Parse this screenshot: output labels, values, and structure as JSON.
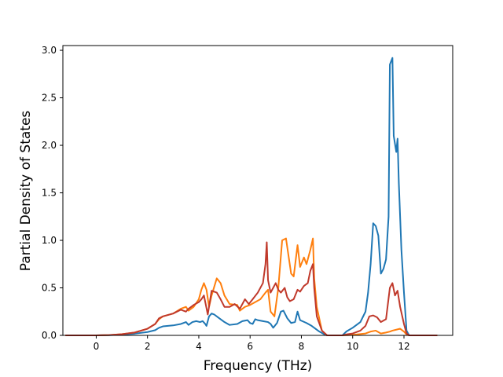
{
  "chart_data": {
    "type": "line",
    "title": "",
    "xlabel": "Frequency (THz)",
    "ylabel": "Partial Density of States",
    "xlim": [
      -1.3,
      13.9
    ],
    "ylim": [
      0.0,
      3.05
    ],
    "x_ticks": [
      0,
      2,
      4,
      6,
      8,
      10,
      12
    ],
    "y_ticks": [
      0.0,
      0.5,
      1.0,
      1.5,
      2.0,
      2.5,
      3.0
    ],
    "x_tick_labels": [
      "0",
      "2",
      "4",
      "6",
      "8",
      "10",
      "12"
    ],
    "y_tick_labels": [
      "0.0",
      "0.5",
      "1.0",
      "1.5",
      "2.0",
      "2.5",
      "3.0"
    ],
    "grid": false,
    "legend": "none",
    "series": [
      {
        "color": "#1f77b4",
        "points": [
          [
            -1.2,
            0
          ],
          [
            0,
            0
          ],
          [
            0.5,
            0.002
          ],
          [
            1,
            0.008
          ],
          [
            1.5,
            0.018
          ],
          [
            2,
            0.035
          ],
          [
            2.3,
            0.055
          ],
          [
            2.45,
            0.08
          ],
          [
            2.6,
            0.095
          ],
          [
            3,
            0.105
          ],
          [
            3.3,
            0.12
          ],
          [
            3.5,
            0.14
          ],
          [
            3.6,
            0.11
          ],
          [
            3.75,
            0.14
          ],
          [
            3.9,
            0.15
          ],
          [
            4.05,
            0.14
          ],
          [
            4.15,
            0.15
          ],
          [
            4.25,
            0.12
          ],
          [
            4.3,
            0.1
          ],
          [
            4.4,
            0.2
          ],
          [
            4.5,
            0.23
          ],
          [
            4.6,
            0.22
          ],
          [
            4.75,
            0.19
          ],
          [
            5,
            0.14
          ],
          [
            5.2,
            0.11
          ],
          [
            5.5,
            0.12
          ],
          [
            5.7,
            0.15
          ],
          [
            5.9,
            0.16
          ],
          [
            6,
            0.13
          ],
          [
            6.1,
            0.12
          ],
          [
            6.2,
            0.17
          ],
          [
            6.3,
            0.16
          ],
          [
            6.5,
            0.15
          ],
          [
            6.7,
            0.14
          ],
          [
            6.8,
            0.12
          ],
          [
            6.9,
            0.08
          ],
          [
            7.05,
            0.13
          ],
          [
            7.2,
            0.25
          ],
          [
            7.3,
            0.26
          ],
          [
            7.45,
            0.18
          ],
          [
            7.6,
            0.13
          ],
          [
            7.75,
            0.14
          ],
          [
            7.85,
            0.25
          ],
          [
            7.95,
            0.16
          ],
          [
            8.2,
            0.13
          ],
          [
            8.4,
            0.1
          ],
          [
            8.55,
            0.07
          ],
          [
            8.7,
            0.04
          ],
          [
            8.9,
            0.01
          ],
          [
            9,
            0
          ],
          [
            9.6,
            0
          ],
          [
            9.75,
            0.04
          ],
          [
            10,
            0.08
          ],
          [
            10.3,
            0.14
          ],
          [
            10.5,
            0.25
          ],
          [
            10.6,
            0.45
          ],
          [
            10.7,
            0.75
          ],
          [
            10.8,
            1.18
          ],
          [
            10.9,
            1.15
          ],
          [
            11.0,
            1.05
          ],
          [
            11.1,
            0.65
          ],
          [
            11.2,
            0.7
          ],
          [
            11.3,
            0.8
          ],
          [
            11.4,
            1.25
          ],
          [
            11.45,
            2.85
          ],
          [
            11.55,
            2.92
          ],
          [
            11.6,
            2.1
          ],
          [
            11.7,
            1.93
          ],
          [
            11.75,
            2.07
          ],
          [
            11.8,
            1.6
          ],
          [
            11.9,
            0.9
          ],
          [
            12,
            0.45
          ],
          [
            12.1,
            0.05
          ],
          [
            12.2,
            0
          ],
          [
            13.3,
            0
          ]
        ]
      },
      {
        "color": "#ff7f0e",
        "points": [
          [
            -1.2,
            0
          ],
          [
            0,
            0
          ],
          [
            0.5,
            0.003
          ],
          [
            1,
            0.012
          ],
          [
            1.5,
            0.03
          ],
          [
            2,
            0.07
          ],
          [
            2.3,
            0.12
          ],
          [
            2.45,
            0.17
          ],
          [
            2.6,
            0.2
          ],
          [
            3,
            0.23
          ],
          [
            3.3,
            0.28
          ],
          [
            3.5,
            0.3
          ],
          [
            3.6,
            0.26
          ],
          [
            3.8,
            0.3
          ],
          [
            4,
            0.38
          ],
          [
            4.1,
            0.48
          ],
          [
            4.2,
            0.55
          ],
          [
            4.3,
            0.48
          ],
          [
            4.4,
            0.3
          ],
          [
            4.5,
            0.42
          ],
          [
            4.7,
            0.6
          ],
          [
            4.85,
            0.55
          ],
          [
            5,
            0.42
          ],
          [
            5.2,
            0.33
          ],
          [
            5.5,
            0.32
          ],
          [
            5.6,
            0.26
          ],
          [
            5.8,
            0.3
          ],
          [
            6,
            0.32
          ],
          [
            6.2,
            0.35
          ],
          [
            6.4,
            0.38
          ],
          [
            6.6,
            0.45
          ],
          [
            6.7,
            0.48
          ],
          [
            6.8,
            0.25
          ],
          [
            6.95,
            0.2
          ],
          [
            7.1,
            0.5
          ],
          [
            7.25,
            1.0
          ],
          [
            7.4,
            1.02
          ],
          [
            7.6,
            0.65
          ],
          [
            7.7,
            0.62
          ],
          [
            7.85,
            0.95
          ],
          [
            7.95,
            0.72
          ],
          [
            8.1,
            0.82
          ],
          [
            8.2,
            0.75
          ],
          [
            8.35,
            0.9
          ],
          [
            8.45,
            1.02
          ],
          [
            8.5,
            0.6
          ],
          [
            8.6,
            0.3
          ],
          [
            8.8,
            0.05
          ],
          [
            9,
            0
          ],
          [
            9.6,
            0
          ],
          [
            9.75,
            0.002
          ],
          [
            10,
            0.005
          ],
          [
            10.5,
            0.02
          ],
          [
            10.7,
            0.04
          ],
          [
            10.9,
            0.05
          ],
          [
            11.1,
            0.02
          ],
          [
            11.3,
            0.03
          ],
          [
            11.45,
            0.04
          ],
          [
            11.55,
            0.05
          ],
          [
            11.7,
            0.06
          ],
          [
            11.85,
            0.07
          ],
          [
            12,
            0.04
          ],
          [
            12.1,
            0.01
          ],
          [
            12.2,
            0
          ],
          [
            13.3,
            0
          ]
        ]
      },
      {
        "color": "#c0392b",
        "points": [
          [
            -1.2,
            0
          ],
          [
            0,
            0
          ],
          [
            0.5,
            0.003
          ],
          [
            1,
            0.012
          ],
          [
            1.5,
            0.03
          ],
          [
            2,
            0.07
          ],
          [
            2.3,
            0.12
          ],
          [
            2.45,
            0.18
          ],
          [
            2.6,
            0.2
          ],
          [
            3,
            0.23
          ],
          [
            3.3,
            0.27
          ],
          [
            3.5,
            0.25
          ],
          [
            3.6,
            0.28
          ],
          [
            3.8,
            0.32
          ],
          [
            4,
            0.35
          ],
          [
            4.1,
            0.38
          ],
          [
            4.2,
            0.42
          ],
          [
            4.35,
            0.22
          ],
          [
            4.5,
            0.47
          ],
          [
            4.7,
            0.45
          ],
          [
            4.85,
            0.38
          ],
          [
            5,
            0.3
          ],
          [
            5.2,
            0.3
          ],
          [
            5.4,
            0.33
          ],
          [
            5.6,
            0.28
          ],
          [
            5.8,
            0.38
          ],
          [
            5.95,
            0.33
          ],
          [
            6.1,
            0.38
          ],
          [
            6.3,
            0.45
          ],
          [
            6.5,
            0.55
          ],
          [
            6.6,
            0.75
          ],
          [
            6.65,
            0.98
          ],
          [
            6.7,
            0.58
          ],
          [
            6.8,
            0.45
          ],
          [
            6.9,
            0.5
          ],
          [
            7.0,
            0.55
          ],
          [
            7.1,
            0.48
          ],
          [
            7.2,
            0.45
          ],
          [
            7.35,
            0.5
          ],
          [
            7.45,
            0.4
          ],
          [
            7.55,
            0.36
          ],
          [
            7.7,
            0.38
          ],
          [
            7.85,
            0.48
          ],
          [
            7.95,
            0.46
          ],
          [
            8.1,
            0.52
          ],
          [
            8.25,
            0.55
          ],
          [
            8.35,
            0.68
          ],
          [
            8.45,
            0.75
          ],
          [
            8.5,
            0.5
          ],
          [
            8.6,
            0.2
          ],
          [
            8.8,
            0.05
          ],
          [
            9,
            0
          ],
          [
            9.6,
            0
          ],
          [
            9.75,
            0.01
          ],
          [
            10,
            0.02
          ],
          [
            10.3,
            0.05
          ],
          [
            10.5,
            0.1
          ],
          [
            10.65,
            0.2
          ],
          [
            10.8,
            0.21
          ],
          [
            10.95,
            0.19
          ],
          [
            11.1,
            0.14
          ],
          [
            11.3,
            0.17
          ],
          [
            11.45,
            0.5
          ],
          [
            11.55,
            0.55
          ],
          [
            11.65,
            0.42
          ],
          [
            11.75,
            0.47
          ],
          [
            11.85,
            0.3
          ],
          [
            12,
            0.12
          ],
          [
            12.1,
            0.02
          ],
          [
            12.2,
            0
          ],
          [
            13.3,
            0
          ]
        ]
      }
    ]
  }
}
